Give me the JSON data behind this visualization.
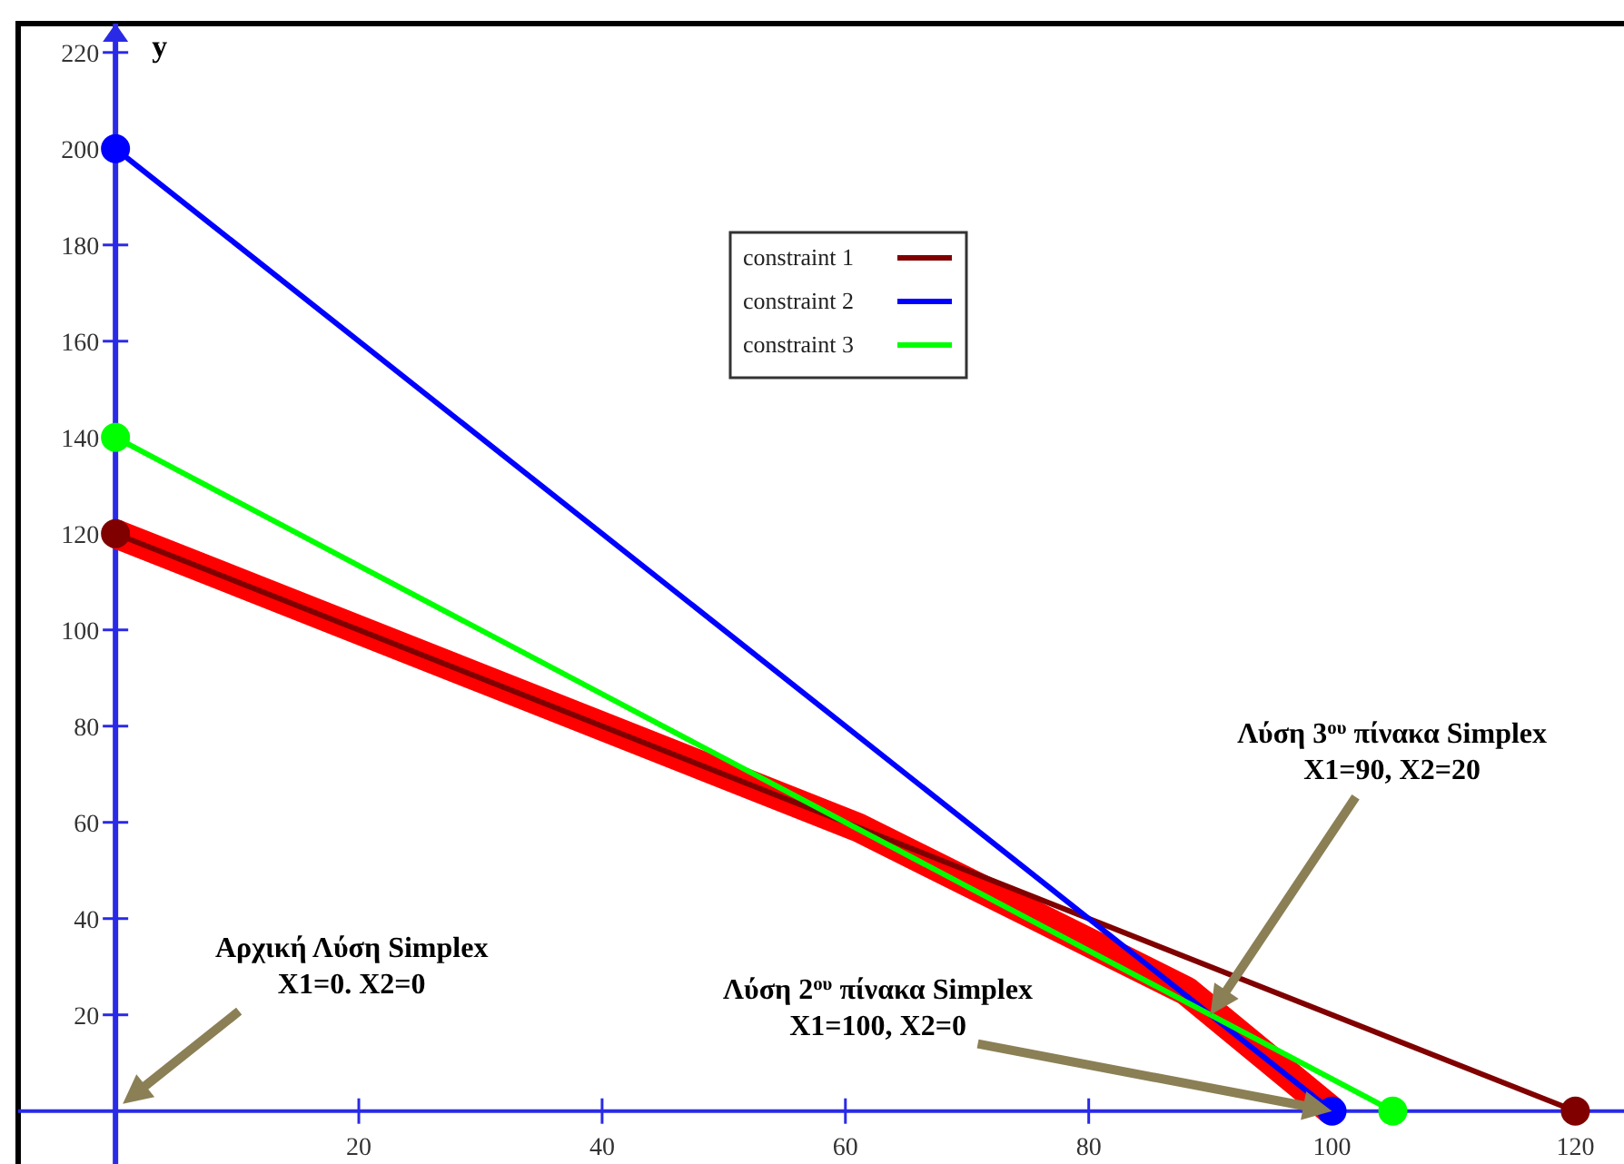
{
  "chart_data": {
    "type": "line",
    "ylabel": "y",
    "xlim": [
      -8,
      124
    ],
    "ylim": [
      -11,
      226
    ],
    "xticks": [
      20,
      40,
      60,
      80,
      100,
      120
    ],
    "yticks": [
      20,
      40,
      60,
      80,
      100,
      120,
      140,
      160,
      180,
      200,
      220
    ],
    "grid": false,
    "ref_lines": [
      {
        "axis": "y",
        "value": 0,
        "color": "#2a2ae6"
      }
    ],
    "legend": "top",
    "line_style": "solid",
    "series": [
      {
        "name": "constraint 1",
        "color": "#800000",
        "x": [
          0,
          120
        ],
        "values": [
          120,
          0
        ],
        "marker": "circle"
      },
      {
        "name": "constraint 2",
        "color": "#0000ff",
        "x": [
          0,
          100
        ],
        "values": [
          200,
          0
        ],
        "marker": "circle"
      },
      {
        "name": "constraint 3",
        "color": "#00ff00",
        "x": [
          0,
          105
        ],
        "values": [
          140,
          0
        ],
        "marker": "circle"
      },
      {
        "color": "#ff0000",
        "x": [
          0,
          61,
          88,
          100
        ],
        "values": [
          120,
          59,
          25,
          0
        ],
        "marker": "none"
      }
    ],
    "annotations": [
      "Αρχική Λύση Simplex\nX1=0. X2=0",
      "Λύση 2$^{ου}$ πίνακα Simplex\nX1=100, X2=0",
      "Λύση 3$^{ου}$  πίνακα Simplex\nX1=90, X2=20"
    ]
  }
}
